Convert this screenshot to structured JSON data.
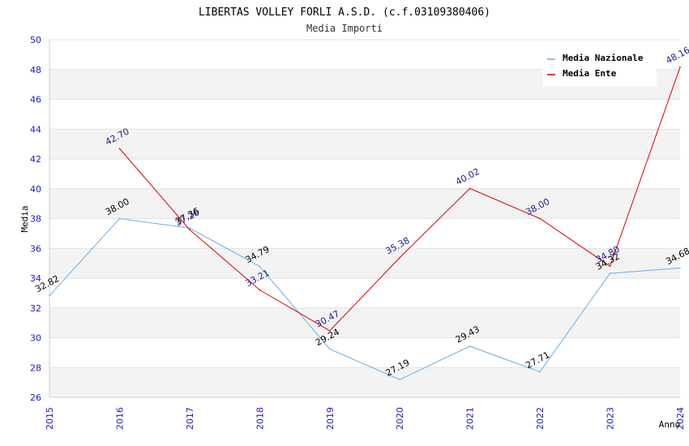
{
  "chart_data": {
    "type": "line",
    "title": "LIBERTAS VOLLEY FORLI A.S.D. (c.f.03109380406)",
    "subtitle": "Media Importi",
    "xlabel": "Anno",
    "ylabel": "Media",
    "x": [
      "2015",
      "2016",
      "2017",
      "2018",
      "2019",
      "2020",
      "2021",
      "2022",
      "2023",
      "2024"
    ],
    "ylim": [
      26,
      50
    ],
    "yticks": [
      "26",
      "28",
      "30",
      "32",
      "34",
      "36",
      "38",
      "40",
      "42",
      "44",
      "46",
      "48",
      "50"
    ],
    "grid": "horizontal alternating bands",
    "legend_position": "top-right",
    "series": [
      {
        "name": "Media Nazionale",
        "color": "#6aaee8",
        "label_color": "#000000",
        "values": [
          32.82,
          38.0,
          37.36,
          34.79,
          29.24,
          27.19,
          29.43,
          27.71,
          34.32,
          34.68
        ],
        "labels": [
          "32.82",
          "38.00",
          "37.36",
          "34.79",
          "29.24",
          "27.19",
          "29.43",
          "27.71",
          "34.32",
          "34.68"
        ]
      },
      {
        "name": "Media Ente",
        "color": "#dd0000",
        "label_color": "#1a1a8c",
        "values": [
          null,
          42.7,
          37.26,
          33.21,
          30.47,
          35.38,
          40.02,
          38.0,
          34.8,
          48.16
        ],
        "labels": [
          "",
          "42.70",
          "37.26",
          "33.21",
          "30.47",
          "35.38",
          "40.02",
          "38.00",
          "34.80",
          "48.16"
        ]
      }
    ]
  }
}
